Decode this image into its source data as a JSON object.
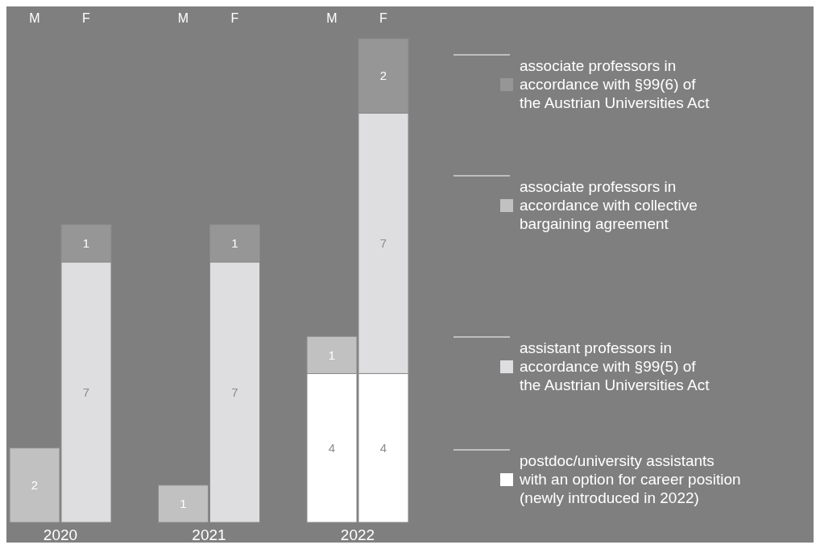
{
  "chart_data": {
    "type": "bar",
    "stacked": true,
    "data_labels": true,
    "legend": "right",
    "categories": [
      "M",
      "F",
      "M",
      "F",
      "M",
      "F"
    ],
    "annotations": [
      "2020",
      "2021",
      "2022"
    ],
    "series": [
      {
        "name": "postdoc/university assistants\nwith an option for career position\n(newly introduced in 2022)",
        "color": "#ffffff",
        "values": [
          null,
          null,
          null,
          null,
          4,
          4
        ]
      },
      {
        "name": "assistant professors in\naccordance with §99(5) of\nthe Austrian Universities Act",
        "color": "#dedddf",
        "values": [
          null,
          7,
          null,
          7,
          null,
          7
        ]
      },
      {
        "name": "associate professors in\naccordance with collective\nbargaining agreement",
        "color": "#c2c1c2",
        "values": [
          2,
          null,
          1,
          null,
          1,
          null
        ]
      },
      {
        "name": "associate professors in\naccordance with §99(6) of\nthe Austrian Universities Act",
        "color": "#979697",
        "values": [
          null,
          1,
          null,
          1,
          null,
          2
        ]
      }
    ]
  }
}
